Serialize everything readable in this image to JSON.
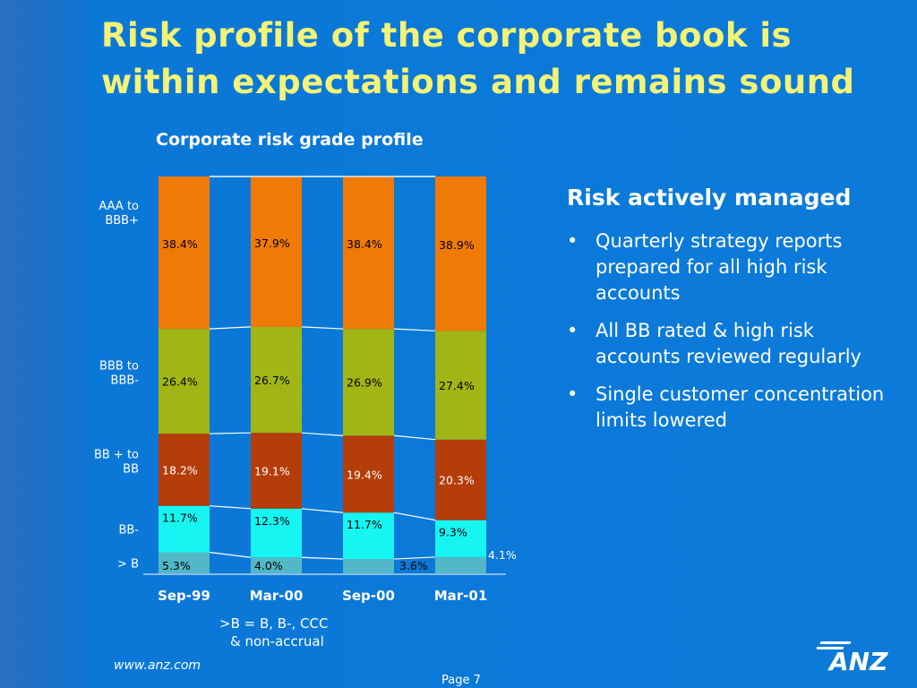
{
  "slide": {
    "title": "Risk profile of the corporate book is within expectations and remains sound"
  },
  "chart_data": {
    "type": "bar",
    "stacked": true,
    "title": "Corporate risk grade profile",
    "categories": [
      "Sep-99",
      "Mar-00",
      "Sep-00",
      "Mar-01"
    ],
    "series": [
      {
        "name": "> B",
        "values": [
          5.3,
          4.0,
          3.6,
          4.1
        ],
        "labels": [
          "5.3%",
          "4.0%",
          "3.6%",
          "4.1%"
        ],
        "color": "#52b8c7"
      },
      {
        "name": "BB-",
        "values": [
          11.7,
          12.3,
          11.7,
          9.3
        ],
        "labels": [
          "11.7%",
          "12.3%",
          "11.7%",
          "9.3%"
        ],
        "color": "#16f5f2"
      },
      {
        "name": "BB + to BB",
        "values": [
          18.2,
          19.1,
          19.4,
          20.3
        ],
        "labels": [
          "18.2%",
          "19.1%",
          "19.4%",
          "20.3%"
        ],
        "color": "#b43d0a"
      },
      {
        "name": "BBB to BBB-",
        "values": [
          26.4,
          26.7,
          26.9,
          27.4
        ],
        "labels": [
          "26.4%",
          "26.7%",
          "26.9%",
          "27.4%"
        ],
        "color": "#9fb614"
      },
      {
        "name": "AAA to BBB+",
        "values": [
          38.4,
          37.9,
          38.4,
          38.9
        ],
        "labels": [
          "38.4%",
          "37.9%",
          "38.4%",
          "38.9%"
        ],
        "color": "#ef7a06"
      }
    ],
    "row_labels": [
      [
        "AAA to",
        "BBB+"
      ],
      [
        "BBB to",
        "BBB-"
      ],
      [
        "BB + to",
        "BB"
      ],
      [
        "BB-"
      ],
      [
        "> B"
      ]
    ],
    "ylim": [
      0,
      100
    ]
  },
  "note": {
    "line1": ">B = B, B-, CCC",
    "line2": "& non-accrual"
  },
  "side": {
    "heading": "Risk actively managed",
    "bullet_char": "•",
    "bullets": [
      "Quarterly strategy reports prepared for all high risk accounts",
      "All BB rated & high risk accounts reviewed regularly",
      "Single customer concentration limits lowered"
    ]
  },
  "footer": {
    "url": "www.anz.com",
    "page": "Page 7",
    "logo_text": "ANZ"
  },
  "colors": {
    "title": "#f3f377",
    "background": "#0b78d8",
    "label_dark": "#000000",
    "label_light": "#ffffff"
  }
}
